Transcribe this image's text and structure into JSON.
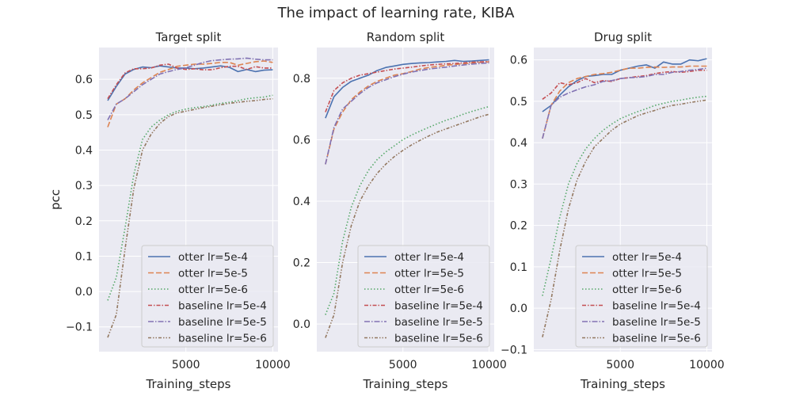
{
  "figure": {
    "title": "The impact of learning rate, KIBA"
  },
  "legend_styles": [
    {
      "label": "otter lr=5e-4",
      "color": "#4c72b0",
      "dash": ""
    },
    {
      "label": "otter lr=5e-5",
      "color": "#dd8452",
      "dash": "7,3"
    },
    {
      "label": "otter lr=5e-6",
      "color": "#55a868",
      "dash": "1.5,2.5"
    },
    {
      "label": "baseline lr=5e-4",
      "color": "#c44e52",
      "dash": "5,2,1.5,2"
    },
    {
      "label": "baseline lr=5e-5",
      "color": "#8172b3",
      "dash": "7,2,1.5,2"
    },
    {
      "label": "baseline lr=5e-6",
      "color": "#937860",
      "dash": "4,2,1.5,2,1.5,2"
    }
  ],
  "chart_data": [
    {
      "type": "line",
      "title": "Target split",
      "xlabel": "Training_steps",
      "ylabel": "pcc",
      "xlim": [
        0,
        10300
      ],
      "ylim": [
        -0.17,
        0.69
      ],
      "xticks": [
        5000,
        10000
      ],
      "xtick_labels": [
        "5000",
        "10000"
      ],
      "yticks": [
        -0.1,
        0.0,
        0.1,
        0.2,
        0.3,
        0.4,
        0.5,
        0.6
      ],
      "ytick_labels": [
        "−0.1",
        "0.0",
        "0.1",
        "0.2",
        "0.3",
        "0.4",
        "0.5",
        "0.6"
      ],
      "legend_position": "lower right",
      "x": [
        500,
        1000,
        1500,
        2000,
        2500,
        3000,
        3500,
        4000,
        4500,
        5000,
        5500,
        6000,
        6500,
        7000,
        7500,
        8000,
        8500,
        9000,
        9500,
        10000
      ],
      "series": [
        {
          "name": "otter lr=5e-4",
          "values": [
            0.54,
            0.58,
            0.615,
            0.628,
            0.635,
            0.633,
            0.638,
            0.635,
            0.632,
            0.632,
            0.63,
            0.632,
            0.635,
            0.638,
            0.634,
            0.622,
            0.628,
            0.622,
            0.626,
            0.627
          ]
        },
        {
          "name": "otter lr=5e-5",
          "values": [
            0.465,
            0.53,
            0.545,
            0.57,
            0.59,
            0.605,
            0.62,
            0.628,
            0.637,
            0.64,
            0.643,
            0.643,
            0.645,
            0.648,
            0.648,
            0.64,
            0.645,
            0.65,
            0.652,
            0.648
          ]
        },
        {
          "name": "otter lr=5e-6",
          "values": [
            -0.025,
            0.04,
            0.18,
            0.33,
            0.43,
            0.465,
            0.485,
            0.5,
            0.51,
            0.516,
            0.52,
            0.523,
            0.527,
            0.532,
            0.535,
            0.54,
            0.545,
            0.548,
            0.55,
            0.555
          ]
        },
        {
          "name": "baseline lr=5e-4",
          "values": [
            0.545,
            0.585,
            0.618,
            0.63,
            0.63,
            0.632,
            0.64,
            0.643,
            0.632,
            0.628,
            0.63,
            0.627,
            0.627,
            0.633,
            0.637,
            0.637,
            0.628,
            0.636,
            0.632,
            0.632
          ]
        },
        {
          "name": "baseline lr=5e-5",
          "values": [
            0.485,
            0.53,
            0.545,
            0.565,
            0.585,
            0.6,
            0.615,
            0.622,
            0.628,
            0.633,
            0.64,
            0.648,
            0.653,
            0.655,
            0.657,
            0.658,
            0.66,
            0.657,
            0.655,
            0.655
          ]
        },
        {
          "name": "baseline lr=5e-6",
          "values": [
            -0.13,
            -0.065,
            0.12,
            0.29,
            0.4,
            0.445,
            0.475,
            0.495,
            0.505,
            0.51,
            0.515,
            0.52,
            0.524,
            0.528,
            0.532,
            0.535,
            0.538,
            0.54,
            0.543,
            0.545
          ]
        }
      ]
    },
    {
      "type": "line",
      "title": "Random split",
      "xlabel": "Training_steps",
      "ylabel": "",
      "xlim": [
        0,
        10300
      ],
      "ylim": [
        -0.09,
        0.9
      ],
      "xticks": [
        5000,
        10000
      ],
      "xtick_labels": [
        "5000",
        "10000"
      ],
      "yticks": [
        0.0,
        0.2,
        0.4,
        0.6,
        0.8
      ],
      "ytick_labels": [
        "0.0",
        "0.2",
        "0.4",
        "0.6",
        "0.8"
      ],
      "legend_position": "lower right",
      "x": [
        500,
        1000,
        1500,
        2000,
        2500,
        3000,
        3500,
        4000,
        4500,
        5000,
        5500,
        6000,
        6500,
        7000,
        7500,
        8000,
        8500,
        9000,
        9500,
        10000
      ],
      "series": [
        {
          "name": "otter lr=5e-4",
          "values": [
            0.67,
            0.74,
            0.77,
            0.79,
            0.8,
            0.81,
            0.825,
            0.835,
            0.84,
            0.845,
            0.848,
            0.85,
            0.851,
            0.853,
            0.855,
            0.858,
            0.855,
            0.856,
            0.858,
            0.86
          ]
        },
        {
          "name": "otter lr=5e-5",
          "values": [
            0.52,
            0.635,
            0.69,
            0.73,
            0.755,
            0.775,
            0.79,
            0.8,
            0.81,
            0.815,
            0.822,
            0.83,
            0.835,
            0.838,
            0.842,
            0.845,
            0.847,
            0.85,
            0.852,
            0.853
          ]
        },
        {
          "name": "otter lr=5e-6",
          "values": [
            0.03,
            0.1,
            0.27,
            0.38,
            0.45,
            0.5,
            0.535,
            0.56,
            0.58,
            0.6,
            0.615,
            0.628,
            0.64,
            0.652,
            0.663,
            0.672,
            0.683,
            0.692,
            0.7,
            0.708
          ]
        },
        {
          "name": "baseline lr=5e-4",
          "values": [
            0.69,
            0.76,
            0.785,
            0.8,
            0.81,
            0.815,
            0.82,
            0.825,
            0.83,
            0.833,
            0.836,
            0.84,
            0.843,
            0.845,
            0.847,
            0.848,
            0.85,
            0.852,
            0.853,
            0.855
          ]
        },
        {
          "name": "baseline lr=5e-5",
          "values": [
            0.52,
            0.64,
            0.7,
            0.725,
            0.75,
            0.77,
            0.785,
            0.795,
            0.805,
            0.813,
            0.82,
            0.825,
            0.83,
            0.833,
            0.836,
            0.84,
            0.843,
            0.846,
            0.848,
            0.85
          ]
        },
        {
          "name": "baseline lr=5e-6",
          "values": [
            -0.045,
            0.03,
            0.2,
            0.32,
            0.4,
            0.45,
            0.49,
            0.52,
            0.545,
            0.565,
            0.583,
            0.598,
            0.612,
            0.625,
            0.635,
            0.645,
            0.655,
            0.665,
            0.675,
            0.683
          ]
        }
      ]
    },
    {
      "type": "line",
      "title": "Drug split",
      "xlabel": "Training_steps",
      "ylabel": "",
      "xlim": [
        0,
        10300
      ],
      "ylim": [
        -0.105,
        0.63
      ],
      "xticks": [
        5000,
        10000
      ],
      "xtick_labels": [
        "5000",
        "10000"
      ],
      "yticks": [
        -0.1,
        0.0,
        0.1,
        0.2,
        0.3,
        0.4,
        0.5,
        0.6
      ],
      "ytick_labels": [
        "−0.1",
        "0.0",
        "0.1",
        "0.2",
        "0.3",
        "0.4",
        "0.5",
        "0.6"
      ],
      "legend_position": "lower right",
      "x": [
        500,
        1000,
        1500,
        2000,
        2500,
        3000,
        3500,
        4000,
        4500,
        5000,
        5500,
        6000,
        6500,
        7000,
        7500,
        8000,
        8500,
        9000,
        9500,
        10000
      ],
      "series": [
        {
          "name": "otter lr=5e-4",
          "values": [
            0.475,
            0.49,
            0.515,
            0.535,
            0.55,
            0.56,
            0.562,
            0.565,
            0.565,
            0.575,
            0.58,
            0.585,
            0.588,
            0.58,
            0.595,
            0.59,
            0.59,
            0.6,
            0.598,
            0.603
          ]
        },
        {
          "name": "otter lr=5e-5",
          "values": [
            0.41,
            0.49,
            0.525,
            0.545,
            0.555,
            0.56,
            0.565,
            0.567,
            0.57,
            0.575,
            0.58,
            0.58,
            0.582,
            0.583,
            0.582,
            0.583,
            0.583,
            0.585,
            0.585,
            0.585
          ]
        },
        {
          "name": "otter lr=5e-6",
          "values": [
            0.03,
            0.12,
            0.22,
            0.3,
            0.35,
            0.385,
            0.41,
            0.43,
            0.445,
            0.458,
            0.467,
            0.475,
            0.482,
            0.49,
            0.495,
            0.5,
            0.503,
            0.507,
            0.51,
            0.512
          ]
        },
        {
          "name": "baseline lr=5e-4",
          "values": [
            0.505,
            0.52,
            0.545,
            0.54,
            0.545,
            0.555,
            0.545,
            0.55,
            0.548,
            0.555,
            0.557,
            0.56,
            0.562,
            0.567,
            0.57,
            0.572,
            0.57,
            0.572,
            0.575,
            0.575
          ]
        },
        {
          "name": "baseline lr=5e-5",
          "values": [
            0.41,
            0.49,
            0.51,
            0.52,
            0.528,
            0.535,
            0.54,
            0.548,
            0.55,
            0.555,
            0.557,
            0.558,
            0.56,
            0.565,
            0.565,
            0.57,
            0.572,
            0.575,
            0.577,
            0.58
          ]
        },
        {
          "name": "baseline lr=5e-6",
          "values": [
            -0.07,
            0.02,
            0.14,
            0.24,
            0.31,
            0.355,
            0.39,
            0.41,
            0.43,
            0.445,
            0.455,
            0.465,
            0.472,
            0.478,
            0.485,
            0.49,
            0.493,
            0.497,
            0.5,
            0.503
          ]
        }
      ]
    }
  ]
}
